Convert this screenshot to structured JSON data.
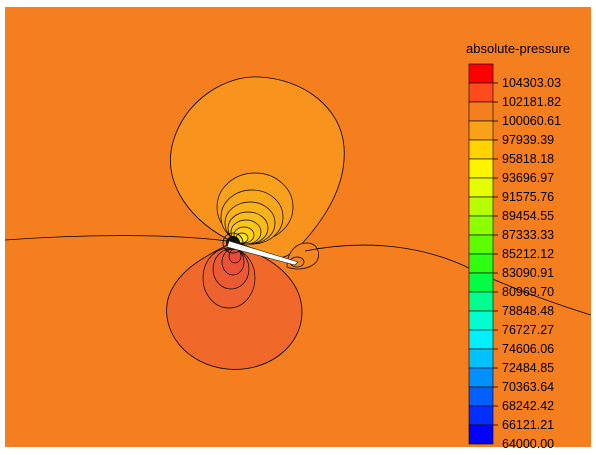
{
  "colors": {
    "background_field": "#F57F1E",
    "upper_lobe": "#F8941D",
    "lower_lobe": "#F0692A",
    "contour_line": "#000000",
    "airfoil": "#FFFFFF"
  },
  "legend": {
    "title": "absolute-pressure",
    "labels": [
      "104303.03",
      "102181.82",
      "100060.61",
      "97939.39",
      "95818.18",
      "93696.97",
      "91575.76",
      "89454.55",
      "87333.33",
      "85212.12",
      "83090.91",
      "80969.70",
      "78848.48",
      "76727.27",
      "74606.06",
      "72484.85",
      "70363.64",
      "68242.42",
      "66121.21",
      "64000.00"
    ],
    "swatches": [
      "#FF0000",
      "#FF4A1C",
      "#F57F1E",
      "#F8A21A",
      "#FFD200",
      "#FFF500",
      "#E3FF00",
      "#B7FF00",
      "#8CFF00",
      "#5DFF00",
      "#2EFF10",
      "#00FF44",
      "#00FF8E",
      "#00FFCE",
      "#00F0FF",
      "#00C2FF",
      "#0090FF",
      "#0060FF",
      "#0030FF",
      "#0000FF"
    ]
  }
}
